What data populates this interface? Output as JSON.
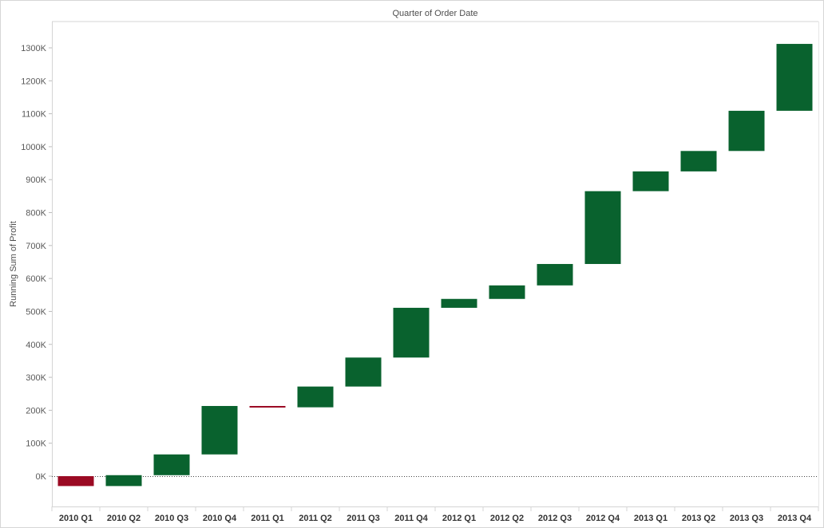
{
  "chart_data": {
    "type": "bar",
    "subtype": "waterfall",
    "header": "Quarter of Order Date",
    "ylabel": "Running Sum of Profit",
    "ylim": [
      -95000,
      1370000
    ],
    "yticks": [
      0,
      100000,
      200000,
      300000,
      400000,
      500000,
      600000,
      700000,
      800000,
      900000,
      1000000,
      1100000,
      1200000,
      1300000
    ],
    "ytick_labels": [
      "0K",
      "100K",
      "200K",
      "300K",
      "400K",
      "500K",
      "600K",
      "700K",
      "800K",
      "900K",
      "1000K",
      "1100K",
      "1200K",
      "1300K"
    ],
    "categories": [
      "2010 Q1",
      "2010 Q2",
      "2010 Q3",
      "2010 Q4",
      "2011 Q1",
      "2011 Q2",
      "2011 Q3",
      "2011 Q4",
      "2012 Q1",
      "2012 Q2",
      "2012 Q3",
      "2012 Q4",
      "2013 Q1",
      "2013 Q2",
      "2013 Q3",
      "2013 Q4"
    ],
    "bars": [
      {
        "start": 0,
        "end": -30000
      },
      {
        "start": -30000,
        "end": 3000
      },
      {
        "start": 3000,
        "end": 66000
      },
      {
        "start": 66000,
        "end": 213000
      },
      {
        "start": 213000,
        "end": 209000
      },
      {
        "start": 209000,
        "end": 272000
      },
      {
        "start": 272000,
        "end": 360000
      },
      {
        "start": 360000,
        "end": 511000
      },
      {
        "start": 511000,
        "end": 538000
      },
      {
        "start": 538000,
        "end": 579000
      },
      {
        "start": 579000,
        "end": 644000
      },
      {
        "start": 644000,
        "end": 865000
      },
      {
        "start": 865000,
        "end": 925000
      },
      {
        "start": 925000,
        "end": 987000
      },
      {
        "start": 987000,
        "end": 1109000
      },
      {
        "start": 1109000,
        "end": 1312000
      }
    ],
    "colors": {
      "positive": "#09622e",
      "negative": "#9b0a23"
    },
    "zero_line": "dotted",
    "grid": false
  }
}
